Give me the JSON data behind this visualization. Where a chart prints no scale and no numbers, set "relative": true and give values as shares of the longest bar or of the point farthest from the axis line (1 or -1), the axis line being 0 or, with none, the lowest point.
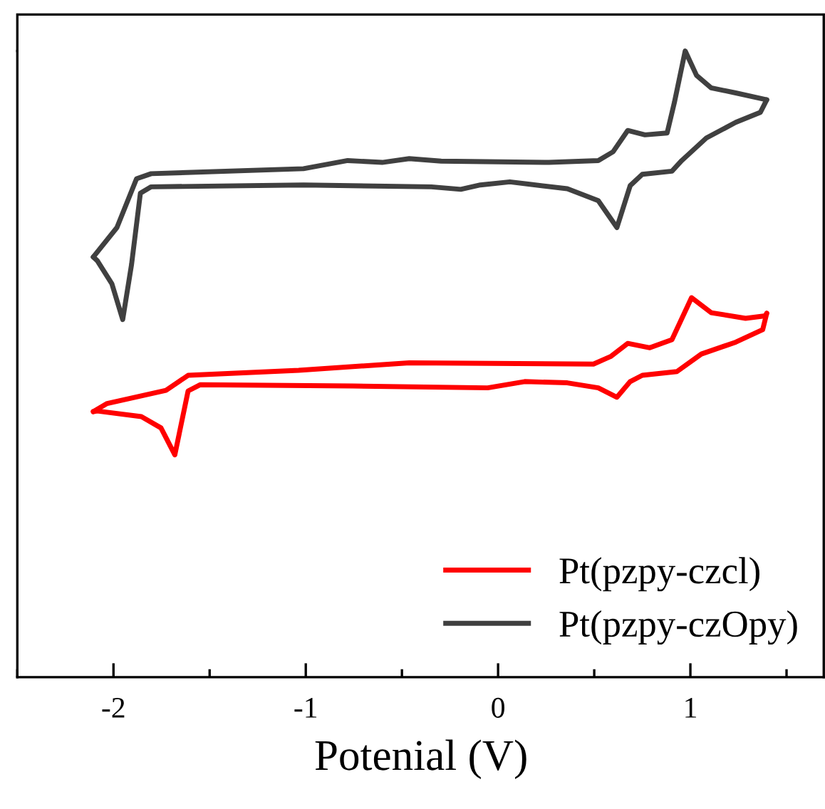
{
  "chart_data": {
    "type": "line",
    "relative": true,
    "xlabel": "Potenial (V)",
    "xlim": [
      -2.5,
      1.7
    ],
    "xticks": [
      {
        "value": -2.5,
        "label": null
      },
      -2,
      {
        "value": -1.5,
        "label": null
      },
      -1,
      {
        "value": -0.5,
        "label": null
      },
      0,
      {
        "value": 0.5,
        "label": null
      },
      1,
      {
        "value": 1.5,
        "label": null
      }
    ],
    "tick_labels": "x",
    "legend": "bottom right",
    "marker": "none",
    "line_style": "solid",
    "series": [
      {
        "name": "Pt(pzpy-czcl)",
        "color": "#ff0000",
        "x": [
          -2.105,
          -2.033,
          -1.727,
          -1.612,
          -1.037,
          -0.462,
          0.496,
          0.585,
          0.674,
          0.789,
          0.904,
          1.006,
          1.108,
          1.287,
          1.39,
          1.397
        ],
        "values": [
          0.424,
          0.437,
          0.458,
          0.482,
          0.49,
          0.502,
          0.5,
          0.512,
          0.533,
          0.526,
          0.539,
          0.606,
          0.582,
          0.573,
          0.577,
          0.581
        ]
      },
      {
        "color": "#ff0000",
        "x": [
          -2.105,
          -2.084,
          -1.855,
          -1.753,
          -1.681,
          -1.612,
          -1.548,
          -0.756,
          -0.054,
          0.138,
          0.36,
          0.521,
          0.618,
          0.687,
          0.75,
          0.93,
          1.057,
          1.236,
          1.376,
          1.397
        ],
        "values": [
          0.424,
          0.425,
          0.416,
          0.398,
          0.355,
          0.457,
          0.467,
          0.465,
          0.462,
          0.472,
          0.47,
          0.462,
          0.447,
          0.472,
          0.482,
          0.488,
          0.516,
          0.535,
          0.555,
          0.581
        ]
      },
      {
        "name": "Pt(pzpy-czOpy)",
        "color": "#404040",
        "x": [
          -2.105,
          -1.982,
          -1.88,
          -1.804,
          -1.012,
          -0.782,
          -0.603,
          -0.462,
          -0.296,
          0.265,
          0.521,
          0.598,
          0.674,
          0.764,
          0.879,
          0.917,
          0.973,
          1.032,
          1.108,
          1.236,
          1.397
        ],
        "values": [
          0.671,
          0.718,
          0.796,
          0.804,
          0.812,
          0.825,
          0.822,
          0.828,
          0.824,
          0.822,
          0.825,
          0.839,
          0.873,
          0.866,
          0.869,
          0.918,
          1,
          0.961,
          0.941,
          0.933,
          0.922
        ]
      },
      {
        "color": "#404040",
        "x": [
          -2.105,
          -2.084,
          -2.008,
          -1.952,
          -1.906,
          -1.86,
          -1.804,
          -1.012,
          -0.347,
          -0.194,
          -0.092,
          0.061,
          0.36,
          0.521,
          0.618,
          0.687,
          0.75,
          0.904,
          0.955,
          1.083,
          1.236,
          1.364,
          1.397
        ],
        "values": [
          0.671,
          0.665,
          0.628,
          0.571,
          0.659,
          0.773,
          0.783,
          0.786,
          0.783,
          0.779,
          0.786,
          0.791,
          0.78,
          0.761,
          0.718,
          0.785,
          0.803,
          0.808,
          0.825,
          0.861,
          0.886,
          0.902,
          0.922
        ]
      }
    ]
  }
}
